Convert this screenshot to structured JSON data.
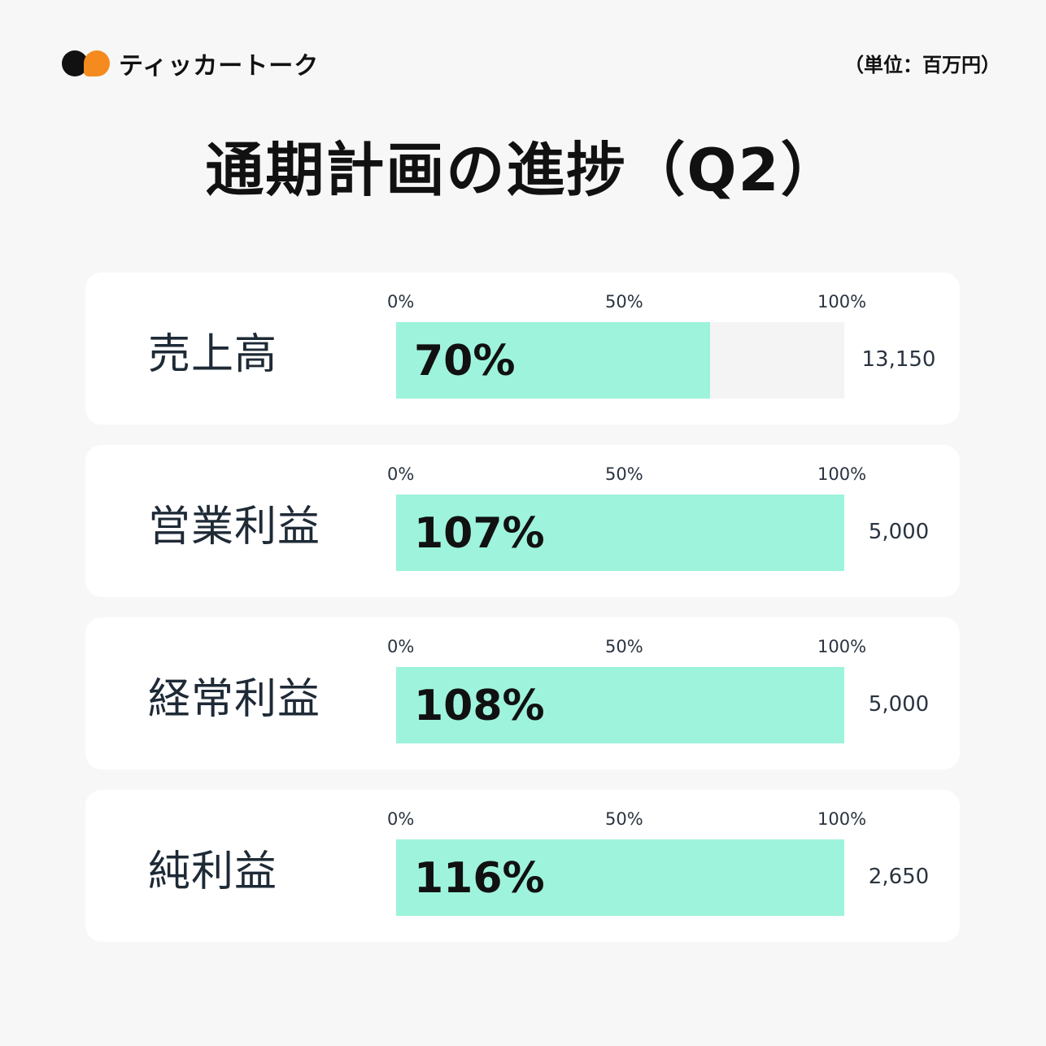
{
  "brand": {
    "name": "ティッカートーク",
    "colors": {
      "dark": "#111111",
      "accent": "#f58a1f",
      "bar": "#9ef3dc"
    }
  },
  "unit_note": "（単位：百万円）",
  "title": "通期計画の進捗（Q2）",
  "chart_data": {
    "type": "bar",
    "orientation": "horizontal",
    "title": "通期計画の進捗（Q2）",
    "unit": "（単位：百万円）",
    "axis_ticks": [
      "0%",
      "50%",
      "100%"
    ],
    "xlim": [
      0,
      100
    ],
    "categories": [
      "売上高",
      "営業利益",
      "経常利益",
      "純利益"
    ],
    "values": [
      70,
      107,
      108,
      116
    ],
    "value_labels": [
      "70%",
      "107%",
      "108%",
      "116%"
    ],
    "targets": [
      "13,150",
      "5,000",
      "5,000",
      "2,650"
    ],
    "rows": [
      {
        "label": "売上高",
        "percent": 70,
        "percent_label": "70%",
        "target": "13,150"
      },
      {
        "label": "営業利益",
        "percent": 107,
        "percent_label": "107%",
        "target": "5,000"
      },
      {
        "label": "経常利益",
        "percent": 108,
        "percent_label": "108%",
        "target": "5,000"
      },
      {
        "label": "純利益",
        "percent": 116,
        "percent_label": "116%",
        "target": "2,650"
      }
    ]
  }
}
